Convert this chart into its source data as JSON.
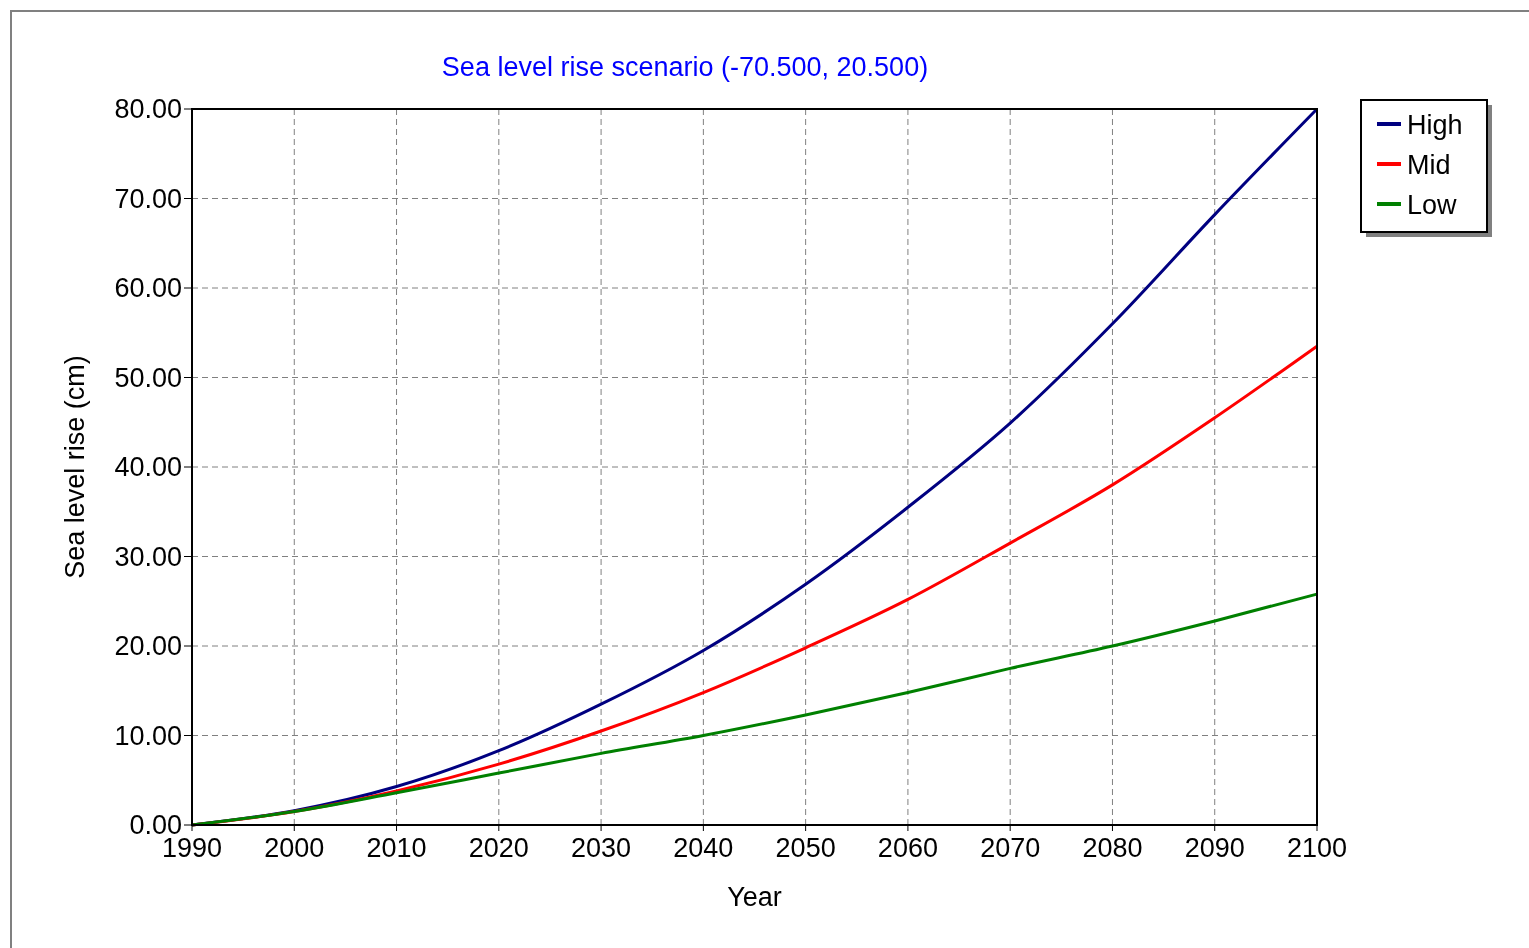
{
  "chart_data": {
    "type": "line",
    "title": "Sea level rise scenario (-70.500, 20.500)",
    "xlabel": "Year",
    "ylabel": "Sea level rise (cm)",
    "x": [
      1990,
      2000,
      2010,
      2020,
      2030,
      2040,
      2050,
      2060,
      2070,
      2080,
      2090,
      2100
    ],
    "series": [
      {
        "name": "High",
        "color": "#000080",
        "values": [
          0,
          1.6,
          4.3,
          8.3,
          13.5,
          19.5,
          26.9,
          35.5,
          44.9,
          56,
          68.2,
          80
        ]
      },
      {
        "name": "Mid",
        "color": "#ff0000",
        "values": [
          0,
          1.5,
          3.8,
          6.8,
          10.5,
          14.8,
          19.8,
          25.2,
          31.5,
          38,
          45.5,
          53.5
        ]
      },
      {
        "name": "Low",
        "color": "#008000",
        "values": [
          0,
          1.5,
          3.6,
          5.8,
          8,
          10,
          12.3,
          14.8,
          17.5,
          20,
          22.8,
          25.8
        ]
      }
    ],
    "xlim": [
      1990,
      2100
    ],
    "xticks": [
      1990,
      2000,
      2010,
      2020,
      2030,
      2040,
      2050,
      2060,
      2070,
      2080,
      2090,
      2100
    ],
    "ylim": [
      0,
      80
    ],
    "yticks": [
      {
        "value": 0,
        "label": "0.00"
      },
      {
        "value": 10,
        "label": "10.00"
      },
      {
        "value": 20,
        "label": "20.00"
      },
      {
        "value": 30,
        "label": "30.00"
      },
      {
        "value": 40,
        "label": "40.00"
      },
      {
        "value": 50,
        "label": "50.00"
      },
      {
        "value": 60,
        "label": "60.00"
      },
      {
        "value": 70,
        "label": "70.00"
      },
      {
        "value": 80,
        "label": "80.00"
      }
    ],
    "grid": true,
    "legend": "top right",
    "line_style": "solid"
  }
}
